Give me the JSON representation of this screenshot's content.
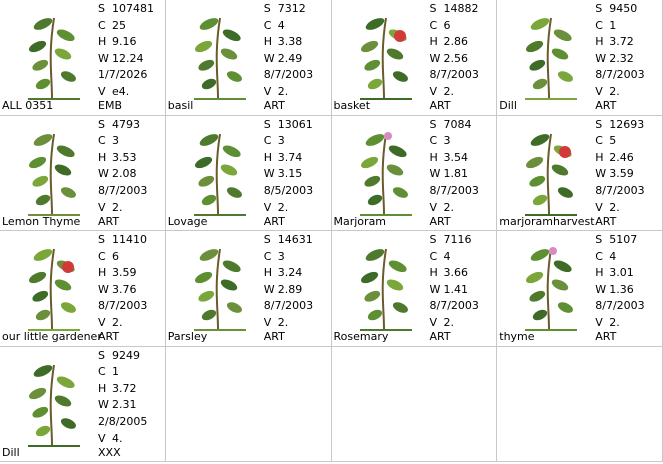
{
  "field_labels": {
    "size": "S",
    "colors": "C",
    "height": "H",
    "width": "W",
    "version": "V"
  },
  "items": [
    {
      "name": "ALL  0351",
      "size": "107481",
      "colors": "25",
      "height": "9.16",
      "width": "12.24",
      "date": "1/7/2026",
      "version": "e4.",
      "format": "EMB"
    },
    {
      "name": "basil",
      "size": "7312",
      "colors": "4",
      "height": "3.38",
      "width": "2.49",
      "date": "8/7/2003",
      "version": "2.",
      "format": "ART"
    },
    {
      "name": "basket",
      "size": "14882",
      "colors": "6",
      "height": "2.86",
      "width": "2.56",
      "date": "8/7/2003",
      "version": "2.",
      "format": "ART"
    },
    {
      "name": "Dill",
      "size": "9450",
      "colors": "1",
      "height": "3.72",
      "width": "2.32",
      "date": "8/7/2003",
      "version": "2.",
      "format": "ART"
    },
    {
      "name": "Lemon Thyme",
      "size": "4793",
      "colors": "3",
      "height": "3.53",
      "width": "2.08",
      "date": "8/7/2003",
      "version": "2.",
      "format": "ART"
    },
    {
      "name": "Lovage",
      "size": "13061",
      "colors": "3",
      "height": "3.74",
      "width": "3.15",
      "date": "8/5/2003",
      "version": "2.",
      "format": "ART"
    },
    {
      "name": "Marjoram",
      "size": "7084",
      "colors": "3",
      "height": "3.54",
      "width": "1.81",
      "date": "8/7/2003",
      "version": "2.",
      "format": "ART"
    },
    {
      "name": "marjoramharvest",
      "size": "12693",
      "colors": "5",
      "height": "2.46",
      "width": "3.59",
      "date": "8/7/2003",
      "version": "2.",
      "format": "ART"
    },
    {
      "name": "our little gardener",
      "size": "11410",
      "colors": "6",
      "height": "3.59",
      "width": "3.76",
      "date": "8/7/2003",
      "version": "2.",
      "format": "ART"
    },
    {
      "name": "Parsley",
      "size": "14631",
      "colors": "3",
      "height": "3.24",
      "width": "2.89",
      "date": "8/7/2003",
      "version": "2.",
      "format": "ART"
    },
    {
      "name": "Rosemary",
      "size": "7116",
      "colors": "4",
      "height": "3.66",
      "width": "1.41",
      "date": "8/7/2003",
      "version": "2.",
      "format": "ART"
    },
    {
      "name": "thyme",
      "size": "5107",
      "colors": "4",
      "height": "3.01",
      "width": "1.36",
      "date": "8/7/2003",
      "version": "2.",
      "format": "ART"
    },
    {
      "name": "Dill",
      "size": "9249",
      "colors": "1",
      "height": "3.72",
      "width": "2.31",
      "date": "2/8/2005",
      "version": "4.",
      "format": "XXX"
    }
  ]
}
